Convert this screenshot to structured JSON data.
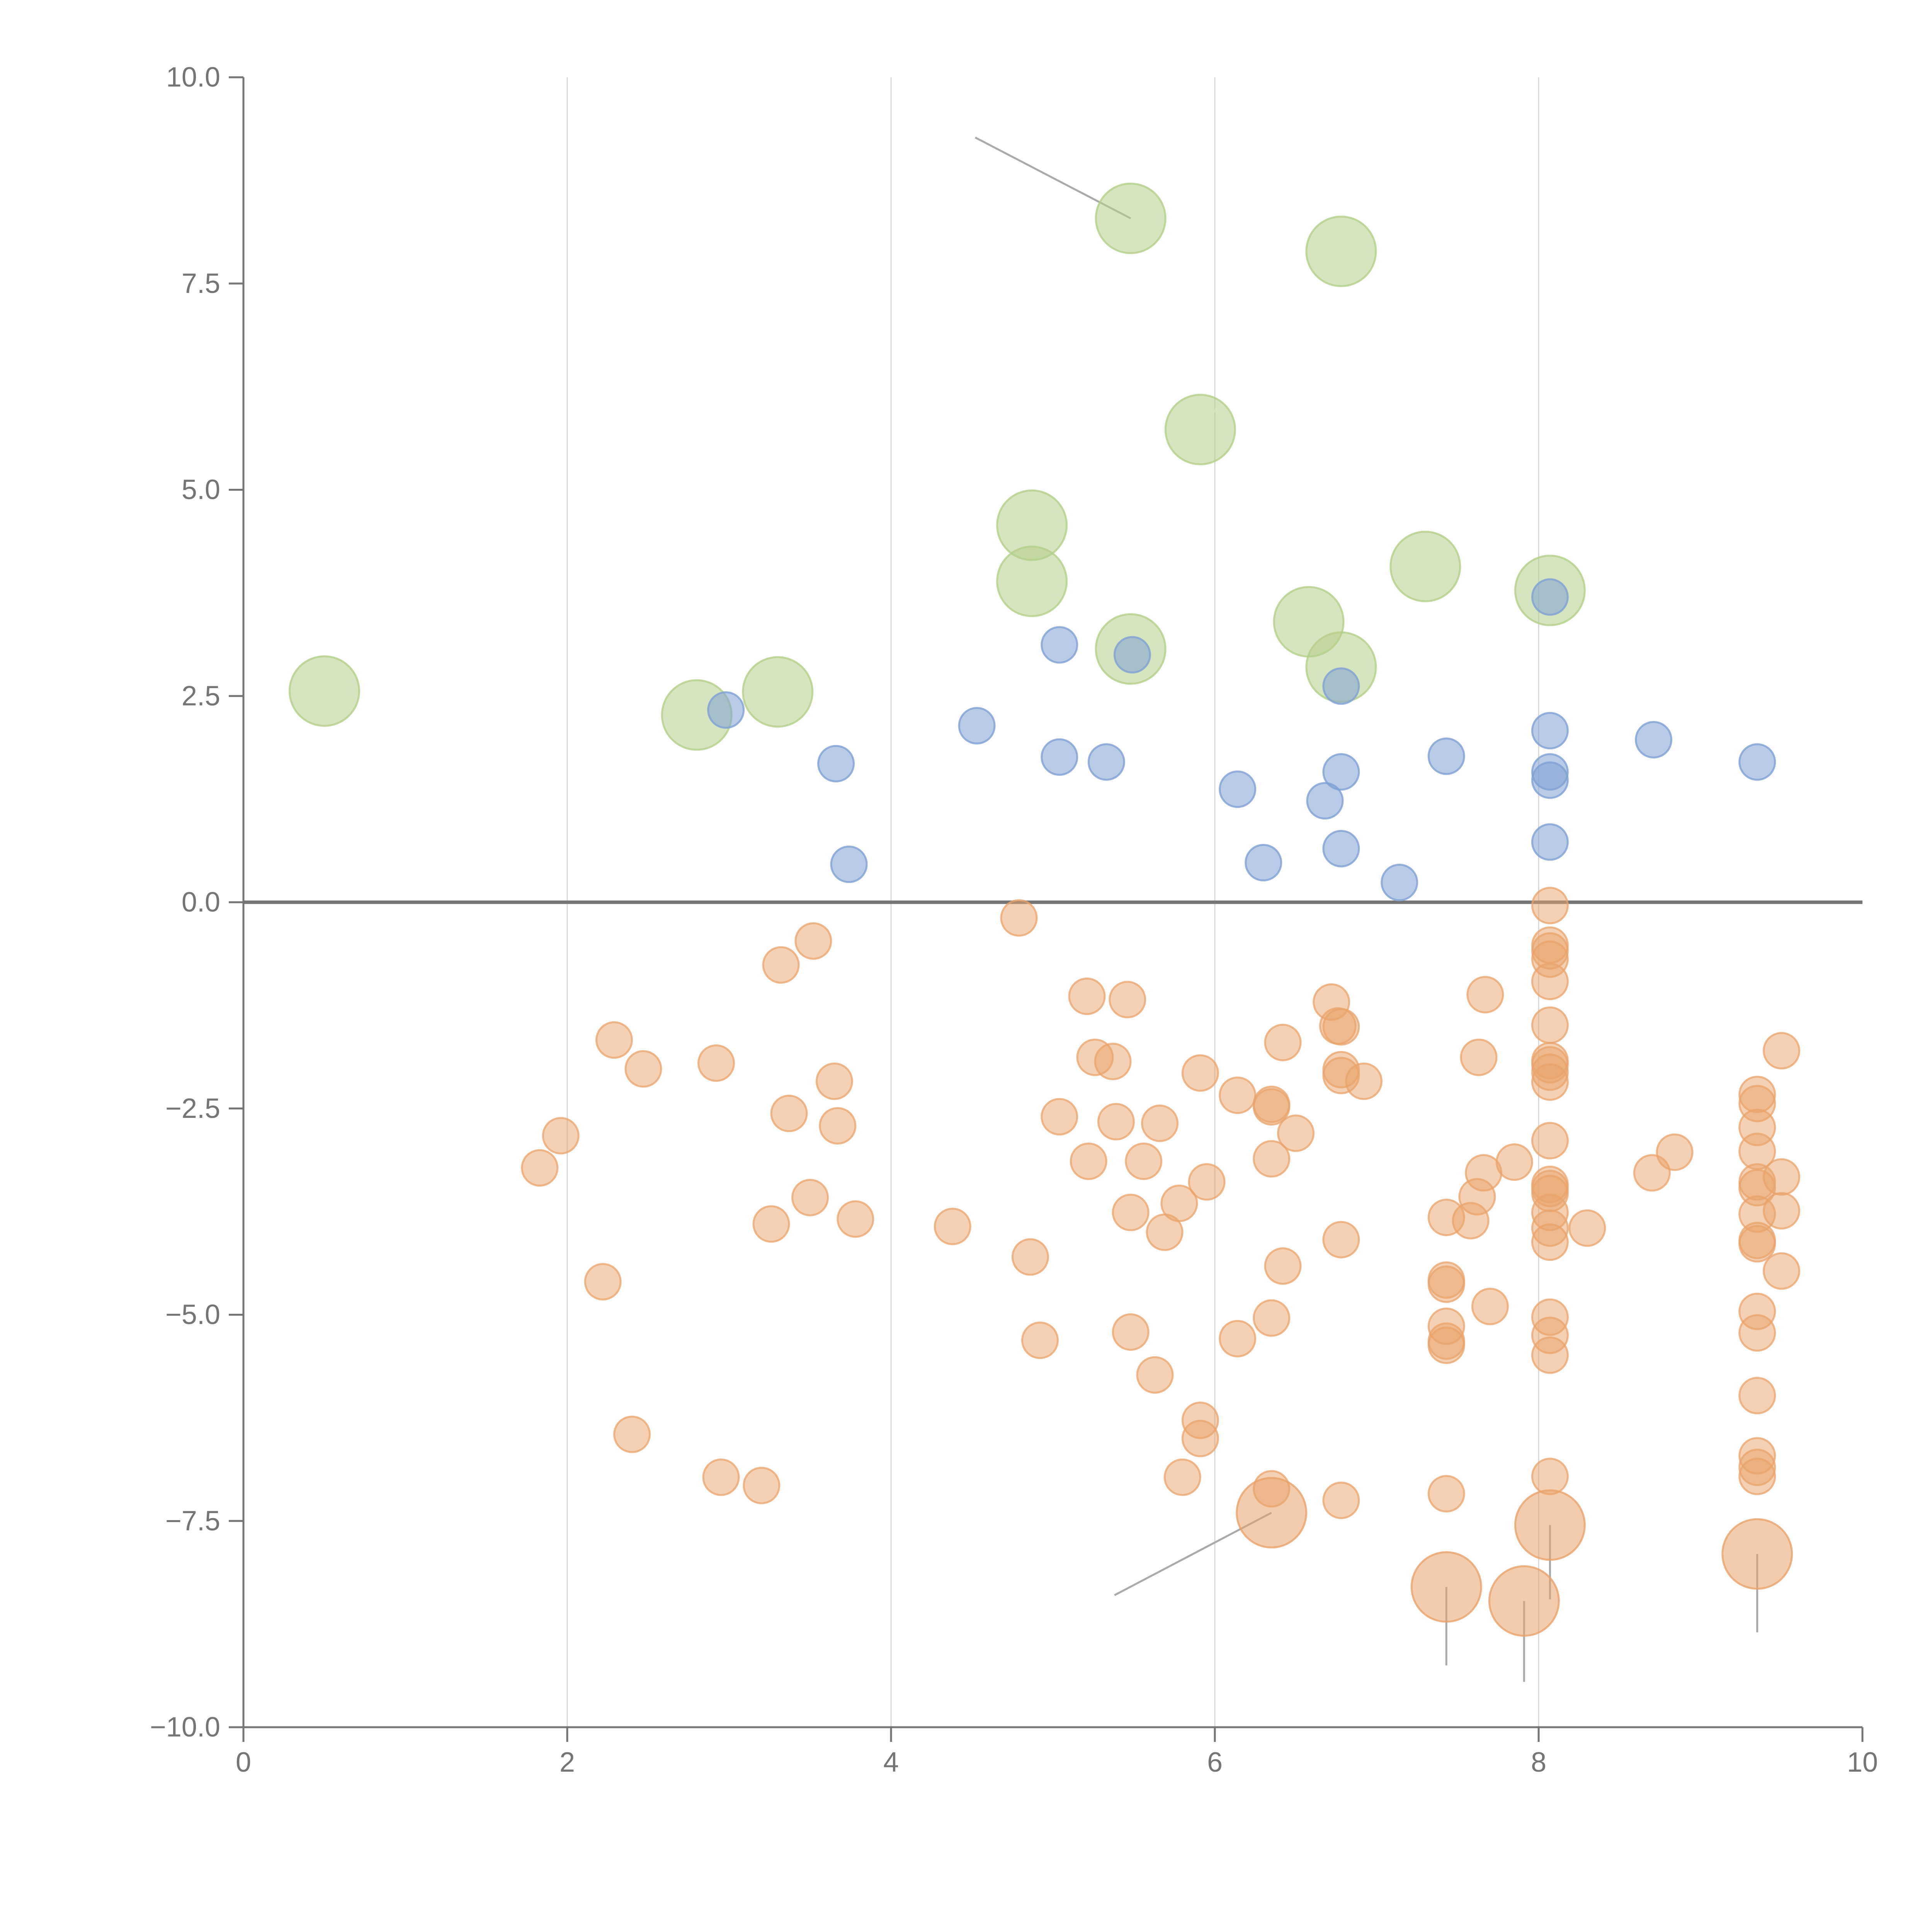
{
  "chart_data": {
    "type": "scatter",
    "title": "",
    "xlabel": "",
    "ylabel": "",
    "xlim": [
      0,
      10
    ],
    "ylim": [
      -10,
      10
    ],
    "x_ticks": [
      0,
      2,
      4,
      6,
      8,
      10
    ],
    "x_tick_labels": [
      "0",
      "2",
      "4",
      "6",
      "8",
      "10"
    ],
    "y_ticks": [
      10,
      7.5,
      5,
      2.5,
      0,
      -2.5,
      -5,
      -7.5,
      -10
    ],
    "y_tick_labels": [
      "10.0",
      "7.5",
      "5.0",
      "2.5",
      "0.0",
      "−2.5",
      "−5.0",
      "−7.5",
      "−10.0"
    ],
    "vertical_grid_at_x": [
      2,
      4,
      6,
      8
    ],
    "horizontal_reference_y": 0,
    "legend": "none",
    "series": [
      {
        "name": "positive",
        "color": "#7fa0d4",
        "opacity": 0.55,
        "size": "small",
        "points": [
          [
            2.98,
            2.33
          ],
          [
            3.66,
            1.68
          ],
          [
            3.74,
            0.46
          ],
          [
            4.53,
            2.14
          ],
          [
            5.04,
            3.12
          ],
          [
            5.04,
            1.76
          ],
          [
            5.33,
            1.7
          ],
          [
            5.49,
            3.0
          ],
          [
            6.14,
            1.37
          ],
          [
            6.3,
            0.48
          ],
          [
            6.68,
            1.23
          ],
          [
            6.78,
            2.62
          ],
          [
            6.78,
            1.58
          ],
          [
            6.78,
            0.65
          ],
          [
            7.14,
            0.24
          ],
          [
            7.43,
            1.77
          ],
          [
            8.07,
            3.7
          ],
          [
            8.07,
            2.08
          ],
          [
            8.07,
            1.58
          ],
          [
            8.07,
            1.48
          ],
          [
            8.07,
            0.73
          ],
          [
            8.71,
            1.97
          ],
          [
            9.35,
            1.7
          ]
        ]
      },
      {
        "name": "negative",
        "color": "#e9a36b",
        "opacity": 0.5,
        "size": "small",
        "points": [
          [
            1.83,
            -3.22
          ],
          [
            1.96,
            -2.83
          ],
          [
            2.22,
            -4.6
          ],
          [
            2.29,
            -1.67
          ],
          [
            2.4,
            -6.45
          ],
          [
            2.47,
            -2.02
          ],
          [
            2.92,
            -1.95
          ],
          [
            2.95,
            -6.97
          ],
          [
            3.2,
            -7.07
          ],
          [
            3.26,
            -3.9
          ],
          [
            3.32,
            -0.76
          ],
          [
            3.37,
            -2.56
          ],
          [
            3.5,
            -3.58
          ],
          [
            3.52,
            -0.47
          ],
          [
            3.65,
            -2.17
          ],
          [
            3.67,
            -2.71
          ],
          [
            3.78,
            -3.84
          ],
          [
            4.38,
            -3.93
          ],
          [
            4.79,
            -0.19
          ],
          [
            4.86,
            -4.3
          ],
          [
            4.92,
            -5.31
          ],
          [
            5.04,
            -2.6
          ],
          [
            5.21,
            -1.14
          ],
          [
            5.22,
            -3.14
          ],
          [
            5.26,
            -1.88
          ],
          [
            5.37,
            -1.93
          ],
          [
            5.39,
            -2.66
          ],
          [
            5.46,
            -1.18
          ],
          [
            5.48,
            -3.76
          ],
          [
            5.48,
            -5.21
          ],
          [
            5.56,
            -3.14
          ],
          [
            5.63,
            -5.73
          ],
          [
            5.66,
            -2.68
          ],
          [
            5.69,
            -4.0
          ],
          [
            5.78,
            -3.65
          ],
          [
            5.8,
            -6.97
          ],
          [
            5.91,
            -2.07
          ],
          [
            5.91,
            -6.28
          ],
          [
            5.91,
            -6.5
          ],
          [
            5.95,
            -3.39
          ],
          [
            6.14,
            -2.34
          ],
          [
            6.14,
            -5.29
          ],
          [
            6.35,
            -2.45
          ],
          [
            6.35,
            -2.48
          ],
          [
            6.35,
            -3.11
          ],
          [
            6.35,
            -5.04
          ],
          [
            6.35,
            -7.11
          ],
          [
            6.42,
            -1.7
          ],
          [
            6.42,
            -4.41
          ],
          [
            6.5,
            -2.8
          ],
          [
            6.72,
            -1.21
          ],
          [
            6.76,
            -1.5
          ],
          [
            6.78,
            -1.51
          ],
          [
            6.78,
            -2.03
          ],
          [
            6.78,
            -2.1
          ],
          [
            6.78,
            -4.09
          ],
          [
            6.78,
            -7.25
          ],
          [
            6.92,
            -2.17
          ],
          [
            7.43,
            -3.82
          ],
          [
            7.43,
            -4.58
          ],
          [
            7.43,
            -4.63
          ],
          [
            7.43,
            -5.14
          ],
          [
            7.43,
            -5.32
          ],
          [
            7.43,
            -5.37
          ],
          [
            7.43,
            -7.17
          ],
          [
            7.58,
            -3.86
          ],
          [
            7.62,
            -3.57
          ],
          [
            7.63,
            -1.88
          ],
          [
            7.66,
            -3.28
          ],
          [
            7.67,
            -1.12
          ],
          [
            7.7,
            -4.9
          ],
          [
            7.85,
            -3.15
          ],
          [
            8.07,
            -0.04
          ],
          [
            8.07,
            -0.52
          ],
          [
            8.07,
            -0.59
          ],
          [
            8.07,
            -0.69
          ],
          [
            8.07,
            -0.96
          ],
          [
            8.07,
            -1.49
          ],
          [
            8.07,
            -1.92
          ],
          [
            8.07,
            -1.97
          ],
          [
            8.07,
            -2.06
          ],
          [
            8.07,
            -2.18
          ],
          [
            8.07,
            -2.89
          ],
          [
            8.07,
            -3.42
          ],
          [
            8.07,
            -3.47
          ],
          [
            8.07,
            -3.53
          ],
          [
            8.07,
            -3.76
          ],
          [
            8.07,
            -3.95
          ],
          [
            8.07,
            -4.12
          ],
          [
            8.07,
            -5.03
          ],
          [
            8.07,
            -5.25
          ],
          [
            8.07,
            -5.49
          ],
          [
            8.07,
            -6.96
          ],
          [
            8.3,
            -3.95
          ],
          [
            8.7,
            -3.28
          ],
          [
            8.84,
            -3.03
          ],
          [
            9.35,
            -2.33
          ],
          [
            9.35,
            -2.44
          ],
          [
            9.35,
            -2.73
          ],
          [
            9.35,
            -3.02
          ],
          [
            9.35,
            -3.39
          ],
          [
            9.35,
            -3.46
          ],
          [
            9.35,
            -3.78
          ],
          [
            9.35,
            -4.1
          ],
          [
            9.35,
            -4.14
          ],
          [
            9.35,
            -4.96
          ],
          [
            9.35,
            -5.22
          ],
          [
            9.35,
            -5.98
          ],
          [
            9.35,
            -6.71
          ],
          [
            9.35,
            -6.85
          ],
          [
            9.35,
            -6.96
          ],
          [
            9.5,
            -1.8
          ],
          [
            9.5,
            -3.33
          ],
          [
            9.5,
            -3.74
          ],
          [
            9.5,
            -4.47
          ]
        ]
      },
      {
        "name": "highlighted-positive",
        "color": "#b3cf8a",
        "opacity": 0.55,
        "size": "large",
        "points": [
          [
            0.5,
            2.56
          ],
          [
            2.8,
            2.27
          ],
          [
            3.3,
            2.55
          ],
          [
            4.87,
            4.57
          ],
          [
            4.87,
            3.89
          ],
          [
            5.48,
            8.29
          ],
          [
            5.48,
            3.07
          ],
          [
            5.91,
            5.73
          ],
          [
            6.58,
            3.4
          ],
          [
            6.78,
            7.89
          ],
          [
            6.78,
            2.85
          ],
          [
            7.3,
            4.07
          ],
          [
            8.07,
            3.78
          ]
        ]
      },
      {
        "name": "highlighted-negative",
        "color": "#e9a36b",
        "opacity": 0.55,
        "size": "large",
        "points": [
          [
            6.35,
            -7.4
          ],
          [
            7.43,
            -8.3
          ],
          [
            7.91,
            -8.47
          ],
          [
            8.07,
            -7.55
          ],
          [
            9.35,
            -7.9
          ]
        ]
      }
    ],
    "leader_lines": [
      {
        "from": [
          5.48,
          8.29
        ],
        "to": [
          4.52,
          9.27
        ],
        "color": "#aaaaaa"
      },
      {
        "from": [
          6.35,
          -7.4
        ],
        "to": [
          5.38,
          -8.4
        ],
        "color": "#aaaaaa"
      },
      {
        "from": [
          7.43,
          -8.3
        ],
        "to": [
          7.43,
          -9.25
        ],
        "color": "#aaaaaa"
      },
      {
        "from": [
          7.91,
          -8.47
        ],
        "to": [
          7.91,
          -9.45
        ],
        "color": "#aaaaaa"
      },
      {
        "from": [
          8.07,
          -7.55
        ],
        "to": [
          8.07,
          -8.45
        ],
        "color": "#aaaaaa"
      },
      {
        "from": [
          9.35,
          -7.9
        ],
        "to": [
          9.35,
          -8.85
        ],
        "color": "#aaaaaa"
      },
      {
        "from": [
          6.82,
          7.89
        ],
        "to": [
          7.02,
          7.96
        ],
        "color": "#ffffff"
      },
      {
        "from": [
          5.95,
          5.8
        ],
        "to": [
          6.05,
          6.12
        ],
        "color": "#ffffff"
      },
      {
        "from": [
          4.9,
          4.68
        ],
        "to": [
          4.82,
          4.93
        ],
        "color": "#ffffff"
      },
      {
        "from": [
          7.32,
          4.1
        ],
        "to": [
          7.52,
          4.32
        ],
        "color": "#ffffff"
      },
      {
        "from": [
          6.6,
          3.45
        ],
        "to": [
          6.62,
          3.86
        ],
        "color": "#ffffff"
      },
      {
        "from": [
          8.1,
          3.8
        ],
        "to": [
          8.28,
          3.82
        ],
        "color": "#ffffff"
      },
      {
        "from": [
          5.52,
          3.1
        ],
        "to": [
          5.54,
          2.65
        ],
        "color": "#ffffff"
      },
      {
        "from": [
          6.8,
          2.88
        ],
        "to": [
          6.9,
          2.62
        ],
        "color": "#ffffff"
      },
      {
        "from": [
          2.8,
          2.3
        ],
        "to": [
          2.73,
          2.58
        ],
        "color": "#ffffff"
      },
      {
        "from": [
          3.3,
          2.58
        ],
        "to": [
          3.53,
          2.43
        ],
        "color": "#ffffff"
      }
    ]
  }
}
